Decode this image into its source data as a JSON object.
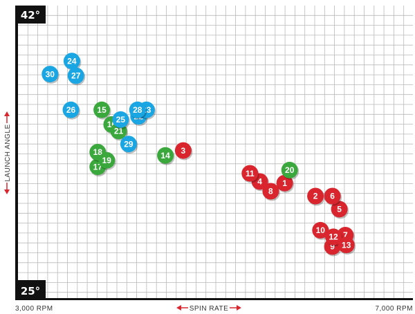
{
  "chart_data": {
    "type": "scatter",
    "title": "",
    "xlabel": "SPIN RATE",
    "ylabel": "LAUNCH ANGLE",
    "x_tick_left": "3,000 RPM",
    "x_tick_right": "7,000 RPM",
    "y_tick_top": "42°",
    "y_tick_bottom": "25°",
    "xlim": [
      3000,
      7000
    ],
    "ylim": [
      25,
      42
    ],
    "grid": true,
    "colors": {
      "blue": "#1aa6e3",
      "green": "#3aa83c",
      "red": "#d9262e",
      "grid": "#b9b9b9",
      "frame": "#111111",
      "arrow": "#d9262e"
    },
    "points": [
      {
        "label": "1",
        "group": "red",
        "x": 5710,
        "y": 31.6
      },
      {
        "label": "2",
        "group": "red",
        "x": 6020,
        "y": 30.8
      },
      {
        "label": "3",
        "group": "red",
        "x": 4690,
        "y": 33.6
      },
      {
        "label": "4",
        "group": "red",
        "x": 5460,
        "y": 31.7
      },
      {
        "label": "5",
        "group": "red",
        "x": 6260,
        "y": 30.0
      },
      {
        "label": "6",
        "group": "red",
        "x": 6190,
        "y": 30.8
      },
      {
        "label": "7",
        "group": "red",
        "x": 6320,
        "y": 28.4
      },
      {
        "label": "8",
        "group": "red",
        "x": 5570,
        "y": 31.1
      },
      {
        "label": "9",
        "group": "red",
        "x": 6190,
        "y": 27.7
      },
      {
        "label": "10",
        "group": "red",
        "x": 6070,
        "y": 28.7
      },
      {
        "label": "11",
        "group": "red",
        "x": 5360,
        "y": 32.2
      },
      {
        "label": "12",
        "group": "red",
        "x": 6200,
        "y": 28.3
      },
      {
        "label": "13",
        "group": "red",
        "x": 6330,
        "y": 27.8
      },
      {
        "label": "14",
        "group": "green",
        "x": 4510,
        "y": 33.3
      },
      {
        "label": "15",
        "group": "green",
        "x": 3870,
        "y": 36.1
      },
      {
        "label": "16",
        "group": "green",
        "x": 3970,
        "y": 35.2
      },
      {
        "label": "17",
        "group": "green",
        "x": 3830,
        "y": 32.6
      },
      {
        "label": "18",
        "group": "green",
        "x": 3830,
        "y": 33.5
      },
      {
        "label": "19",
        "group": "green",
        "x": 3920,
        "y": 33.0
      },
      {
        "label": "20",
        "group": "green",
        "x": 5760,
        "y": 32.4
      },
      {
        "label": "21",
        "group": "green",
        "x": 4040,
        "y": 34.8
      },
      {
        "label": "22",
        "group": "blue",
        "x": 4240,
        "y": 35.7
      },
      {
        "label": "23",
        "group": "blue",
        "x": 4320,
        "y": 36.1
      },
      {
        "label": "24",
        "group": "blue",
        "x": 3570,
        "y": 39.1
      },
      {
        "label": "25",
        "group": "blue",
        "x": 4060,
        "y": 35.5
      },
      {
        "label": "26",
        "group": "blue",
        "x": 3560,
        "y": 36.1
      },
      {
        "label": "27",
        "group": "blue",
        "x": 3610,
        "y": 38.2
      },
      {
        "label": "28",
        "group": "blue",
        "x": 4230,
        "y": 36.1
      },
      {
        "label": "29",
        "group": "blue",
        "x": 4140,
        "y": 34.0
      },
      {
        "label": "30",
        "group": "blue",
        "x": 3350,
        "y": 38.3
      }
    ]
  }
}
